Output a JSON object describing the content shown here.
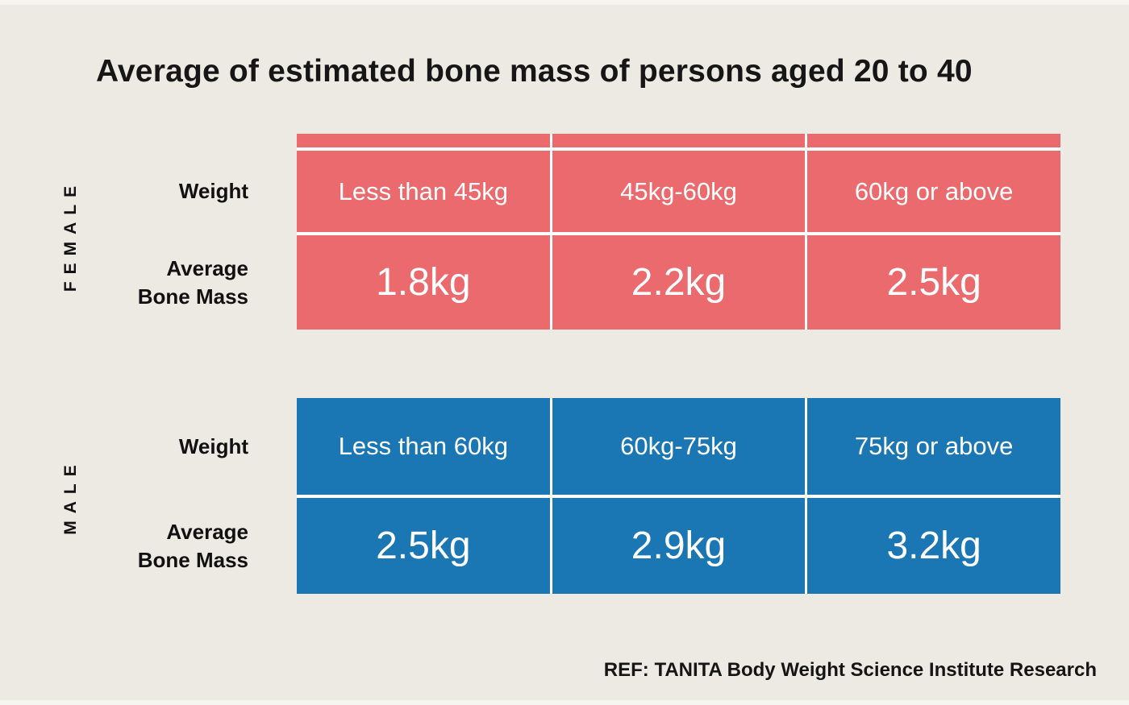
{
  "chart_data": {
    "type": "table",
    "title": "Average of estimated bone mass of persons aged 20 to 40",
    "reference": "REF: TANITA Body Weight Science Institute Research",
    "colors": {
      "background": "#edeae4",
      "female": "#ea6a6e",
      "male": "#1b76b4",
      "divider": "#ffffff",
      "text_dark": "#161616",
      "text_on_color": "#ffffff"
    },
    "series": [
      {
        "group": "FEMALE",
        "color": "#ea6a6e",
        "row_labels": {
          "weight": "Weight",
          "bone_mass": [
            "Average",
            "Bone Mass"
          ]
        },
        "categories": [
          "Less than 45kg",
          "45kg-60kg",
          "60kg or above"
        ],
        "values": [
          "1.8kg",
          "2.2kg",
          "2.5kg"
        ],
        "values_numeric_kg": [
          1.8,
          2.2,
          2.5
        ]
      },
      {
        "group": "MALE",
        "color": "#1b76b4",
        "row_labels": {
          "weight": "Weight",
          "bone_mass": [
            "Average",
            "Bone Mass"
          ]
        },
        "categories": [
          "Less than 60kg",
          "60kg-75kg",
          "75kg or above"
        ],
        "values": [
          "2.5kg",
          "2.9kg",
          "3.2kg"
        ],
        "values_numeric_kg": [
          2.5,
          2.9,
          3.2
        ]
      }
    ]
  }
}
